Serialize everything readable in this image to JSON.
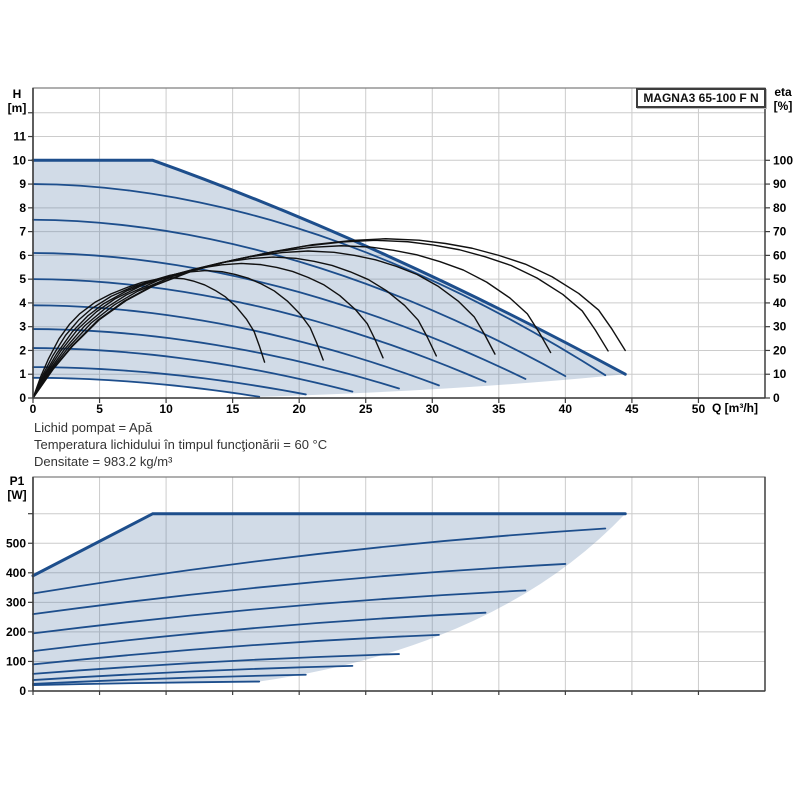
{
  "title_box": {
    "label": "MAGNA3 65-100 F N"
  },
  "labels": {
    "h": "H",
    "m_unit": "[m]",
    "eta": "eta",
    "eta_unit": "[%]",
    "q_unit": "Q [m³/h]",
    "p1": "P1",
    "w_unit": "[W]"
  },
  "notes": {
    "lines": [
      "Lichid pompat = Apă",
      "Temperatura lichidului în timpul funcţionării = 60 °C",
      "Densitate = 983.2 kg/m³"
    ]
  },
  "colors": {
    "curve_blue": "#1d4e8c",
    "efficiency_black": "#111111",
    "region_fill": "rgba(70,110,160,0.25)",
    "grid": "#cccccc",
    "frame": "#7a7a7a",
    "axis": "#3d3d3d",
    "text": "#000000"
  },
  "chart_data": [
    {
      "id": "head-flow-chart",
      "type": "line",
      "title": "MAGNA3 65-100 F N",
      "x_axis": {
        "label": "Q [m³/h]",
        "min": 0,
        "max": 55,
        "ticks": [
          0,
          5,
          10,
          15,
          20,
          25,
          30,
          35,
          40,
          45,
          50
        ]
      },
      "y_left": {
        "label": "H [m]",
        "min": 0,
        "max": 13,
        "ticks": [
          0,
          1,
          2,
          3,
          4,
          5,
          6,
          7,
          8,
          9,
          10,
          11
        ],
        "extra_tick": 12
      },
      "y_right": {
        "label": "eta [%]",
        "min": 0,
        "max": 130,
        "ticks": [
          0,
          10,
          20,
          30,
          40,
          50,
          60,
          70,
          80,
          90,
          100
        ]
      },
      "pump_max_curve": {
        "flat_start": [
          0,
          10
        ],
        "flat_end": [
          9,
          10
        ],
        "drop_ctrl": [
          26,
          6.6
        ],
        "drop_end": [
          44.5,
          1.0
        ]
      },
      "speed_curves": [
        {
          "h0": 0.85,
          "qe": 17.0,
          "he": 0.05
        },
        {
          "h0": 1.3,
          "qe": 20.5,
          "he": 0.15
        },
        {
          "h0": 2.1,
          "qe": 24.0,
          "he": 0.27
        },
        {
          "h0": 2.9,
          "qe": 27.5,
          "he": 0.4
        },
        {
          "h0": 3.9,
          "qe": 30.5,
          "he": 0.53
        },
        {
          "h0": 5.0,
          "qe": 34.0,
          "he": 0.68
        },
        {
          "h0": 6.1,
          "qe": 37.0,
          "he": 0.8
        },
        {
          "h0": 7.5,
          "qe": 40.0,
          "he": 0.92
        },
        {
          "h0": 9.0,
          "qe": 43.0,
          "he": 0.96
        }
      ],
      "lower_boundary": {
        "start": [
          17,
          0.05
        ],
        "ctrl": [
          32,
          0.3
        ],
        "end": [
          44.5,
          1.0
        ]
      },
      "efficiency_base": [
        [
          0,
          0
        ],
        [
          1.5,
          12
        ],
        [
          3,
          22
        ],
        [
          5,
          33
        ],
        [
          7,
          41
        ],
        [
          9,
          47
        ],
        [
          12,
          53.5
        ],
        [
          15,
          58
        ],
        [
          18,
          61.5
        ],
        [
          21,
          64.5
        ],
        [
          24,
          66.3
        ],
        [
          26.5,
          67
        ],
        [
          29,
          66.4
        ],
        [
          31,
          65
        ],
        [
          33,
          63
        ],
        [
          35,
          60
        ],
        [
          37,
          56.3
        ],
        [
          39,
          51
        ],
        [
          41,
          44
        ],
        [
          42.5,
          37
        ],
        [
          43.5,
          29
        ],
        [
          44.5,
          20
        ]
      ],
      "efficiency_speeds": [
        {
          "k": 0.391,
          "f": 0.755
        },
        {
          "k": 0.49,
          "f": 0.8
        },
        {
          "k": 0.591,
          "f": 0.845
        },
        {
          "k": 0.681,
          "f": 0.885
        },
        {
          "k": 0.78,
          "f": 0.923
        },
        {
          "k": 0.874,
          "f": 0.956
        },
        {
          "k": 0.971,
          "f": 0.99
        },
        {
          "k": 1.0,
          "f": 1.0
        }
      ],
      "efficiency_peak": {
        "q": 26.5,
        "eta": 67
      }
    },
    {
      "id": "power-chart",
      "type": "line",
      "x_axis": {
        "label": "",
        "min": 0,
        "max": 55,
        "ticks": [
          0,
          5,
          10,
          15,
          20,
          25,
          30,
          35,
          40,
          45,
          50
        ],
        "labels_visible": false
      },
      "y_left": {
        "label": "P1 [W]",
        "min": 0,
        "max": 724,
        "ticks": [
          0,
          100,
          200,
          300,
          400,
          500
        ],
        "extra_tick": 600
      },
      "power_max_curve": {
        "start": [
          0,
          390
        ],
        "knee": [
          9,
          600
        ],
        "end": [
          44.5,
          600
        ]
      },
      "power_curves": [
        {
          "p0": 20,
          "qe": 17.0,
          "pe": 32
        },
        {
          "p0": 24,
          "qe": 20.5,
          "pe": 55
        },
        {
          "p0": 37,
          "qe": 24.0,
          "pe": 85
        },
        {
          "p0": 58,
          "qe": 27.5,
          "pe": 125
        },
        {
          "p0": 90,
          "qe": 30.5,
          "pe": 190
        },
        {
          "p0": 135,
          "qe": 34.0,
          "pe": 265
        },
        {
          "p0": 195,
          "qe": 37.0,
          "pe": 340
        },
        {
          "p0": 260,
          "qe": 40.0,
          "pe": 430
        },
        {
          "p0": 330,
          "qe": 43.0,
          "pe": 550
        }
      ],
      "right_boundary": {
        "start": [
          17,
          32
        ],
        "ctrl": [
          35,
          150
        ],
        "end": [
          44.5,
          600
        ]
      }
    }
  ]
}
